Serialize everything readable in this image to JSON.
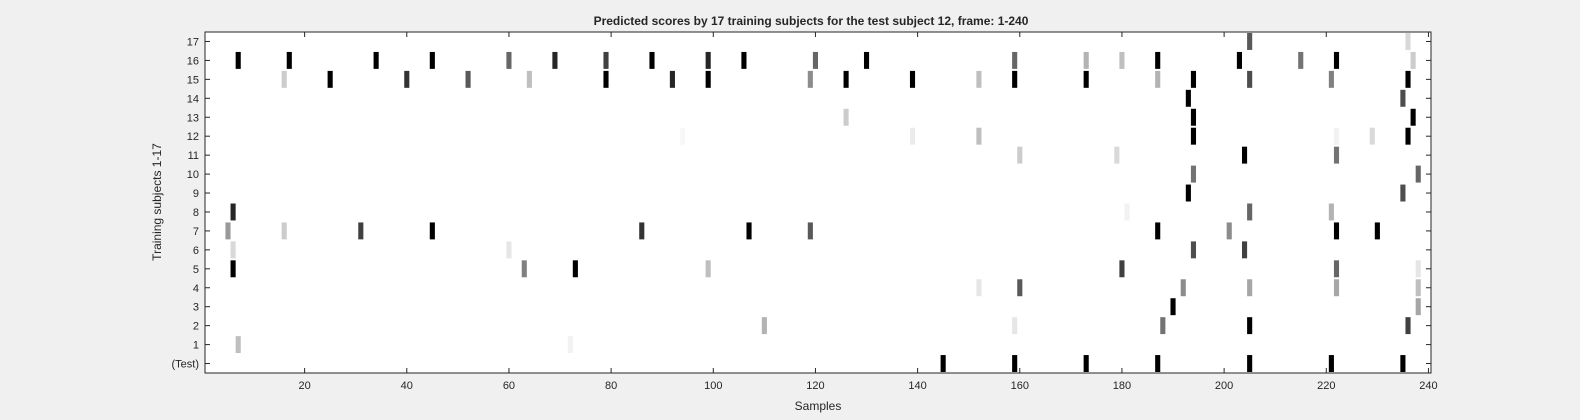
{
  "chart_data": {
    "type": "heatmap",
    "title": "Predicted scores by 17 training subjects for the test subject 12, frame: 1-240",
    "xlabel": "Samples",
    "ylabel": "Training subjects 1-17",
    "xlim": [
      1,
      240
    ],
    "xticks": [
      20,
      40,
      60,
      80,
      100,
      120,
      140,
      160,
      180,
      200,
      220,
      240
    ],
    "yticklabels": [
      "(Test)",
      "1",
      "2",
      "3",
      "4",
      "5",
      "6",
      "7",
      "8",
      "9",
      "10",
      "11",
      "12",
      "13",
      "14",
      "15",
      "16",
      "17"
    ],
    "colormap": "gray (dark = high score)",
    "background_color": "#ffffff",
    "cells": {
      "(Test)": [
        [
          145,
          1
        ],
        [
          159,
          1
        ],
        [
          173,
          1
        ],
        [
          187,
          1
        ],
        [
          205,
          1
        ],
        [
          221,
          1
        ],
        [
          235,
          1
        ]
      ],
      "1": [
        [
          7,
          0.25
        ],
        [
          72,
          0.05
        ]
      ],
      "2": [
        [
          110,
          0.3
        ],
        [
          159,
          0.1
        ],
        [
          188,
          0.55
        ],
        [
          205,
          1
        ],
        [
          236,
          0.75
        ]
      ],
      "3": [
        [
          190,
          1
        ],
        [
          238,
          0.35
        ]
      ],
      "4": [
        [
          152,
          0.1
        ],
        [
          160,
          0.65
        ],
        [
          192,
          0.45
        ],
        [
          205,
          0.35
        ],
        [
          222,
          0.35
        ],
        [
          238,
          0.25
        ]
      ],
      "5": [
        [
          6,
          1
        ],
        [
          63,
          0.5
        ],
        [
          73,
          1
        ],
        [
          99,
          0.25
        ],
        [
          180,
          0.75
        ],
        [
          222,
          0.6
        ],
        [
          238,
          0.1
        ]
      ],
      "6": [
        [
          6,
          0.15
        ],
        [
          60,
          0.1
        ],
        [
          194,
          0.7
        ],
        [
          204,
          0.75
        ]
      ],
      "7": [
        [
          5,
          0.4
        ],
        [
          16,
          0.2
        ],
        [
          31,
          0.75
        ],
        [
          45,
          1
        ],
        [
          86,
          0.8
        ],
        [
          107,
          1
        ],
        [
          119,
          0.65
        ],
        [
          187,
          1
        ],
        [
          201,
          0.45
        ],
        [
          222,
          1
        ],
        [
          230,
          1
        ]
      ],
      "8": [
        [
          6,
          0.85
        ],
        [
          181,
          0.05
        ],
        [
          205,
          0.6
        ],
        [
          221,
          0.3
        ]
      ],
      "9": [
        [
          193,
          1
        ],
        [
          235,
          0.7
        ]
      ],
      "10": [
        [
          194,
          0.55
        ],
        [
          238,
          0.6
        ]
      ],
      "11": [
        [
          160,
          0.2
        ],
        [
          179,
          0.15
        ],
        [
          204,
          1
        ],
        [
          222,
          0.55
        ]
      ],
      "12": [
        [
          94,
          0.03
        ],
        [
          139,
          0.08
        ],
        [
          152,
          0.25
        ],
        [
          194,
          1
        ],
        [
          222,
          0.05
        ],
        [
          229,
          0.15
        ],
        [
          236,
          1
        ]
      ],
      "13": [
        [
          126,
          0.2
        ],
        [
          194,
          1
        ],
        [
          237,
          1
        ]
      ],
      "14": [
        [
          193,
          1
        ],
        [
          235,
          0.7
        ]
      ],
      "15": [
        [
          16,
          0.2
        ],
        [
          25,
          1
        ],
        [
          40,
          0.8
        ],
        [
          52,
          0.65
        ],
        [
          64,
          0.25
        ],
        [
          79,
          1
        ],
        [
          92,
          0.85
        ],
        [
          99,
          1
        ],
        [
          119,
          0.45
        ],
        [
          126,
          1
        ],
        [
          139,
          1
        ],
        [
          152,
          0.25
        ],
        [
          159,
          1
        ],
        [
          173,
          1
        ],
        [
          187,
          0.3
        ],
        [
          194,
          1
        ],
        [
          205,
          0.7
        ],
        [
          221,
          0.5
        ],
        [
          236,
          1
        ]
      ],
      "16": [
        [
          7,
          1
        ],
        [
          17,
          1
        ],
        [
          34,
          1
        ],
        [
          45,
          1
        ],
        [
          60,
          0.6
        ],
        [
          69,
          0.85
        ],
        [
          79,
          0.75
        ],
        [
          88,
          1
        ],
        [
          99,
          0.85
        ],
        [
          106,
          1
        ],
        [
          120,
          0.6
        ],
        [
          130,
          1
        ],
        [
          159,
          0.6
        ],
        [
          173,
          0.3
        ],
        [
          180,
          0.25
        ],
        [
          187,
          1
        ],
        [
          203,
          1
        ],
        [
          215,
          0.55
        ],
        [
          222,
          1
        ],
        [
          237,
          0.2
        ]
      ],
      "17": [
        [
          205,
          0.65
        ],
        [
          236,
          0.15
        ]
      ]
    }
  }
}
